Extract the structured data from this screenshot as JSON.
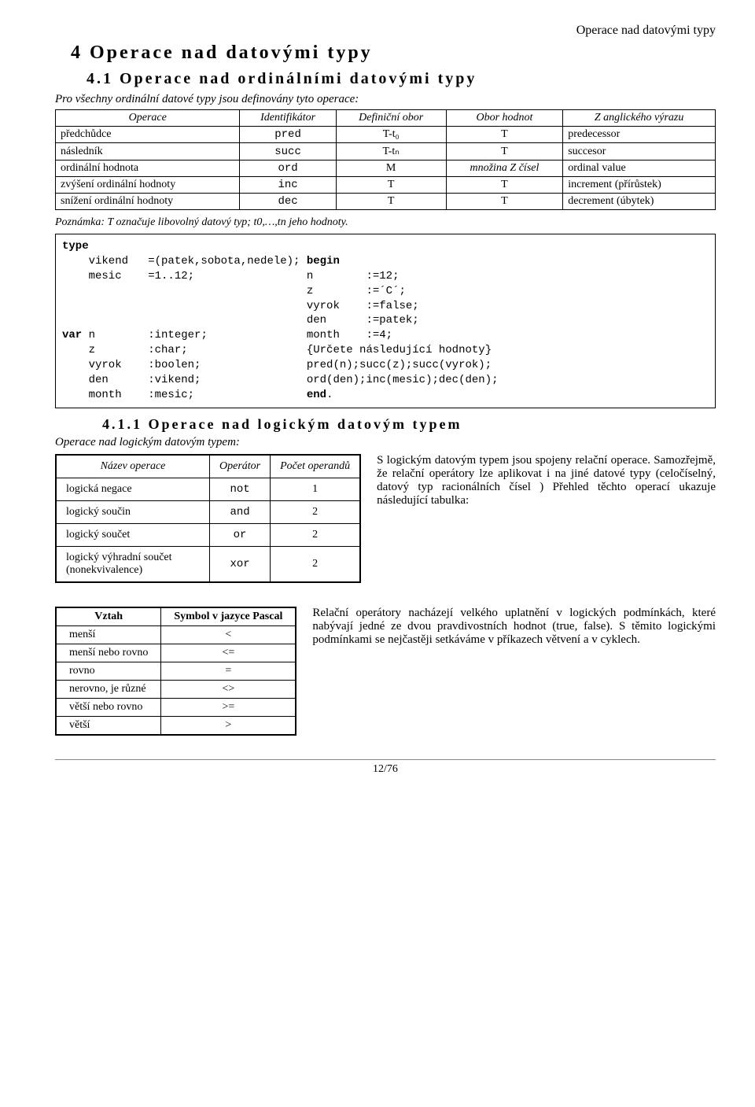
{
  "header_right": "Operace nad datovými typy",
  "h1": "4  Operace nad datovými typy",
  "h2": "4.1   Operace nad ordinálními datovými typy",
  "intro": "Pro všechny ordinální datové typy jsou definovány tyto operace:",
  "ops_table": {
    "headers": [
      "Operace",
      "Identifikátor",
      "Definiční obor",
      "Obor hodnot",
      "Z anglického výrazu"
    ],
    "rows": [
      [
        "předchůdce",
        "pred",
        "T-t₀",
        "T",
        "predecessor"
      ],
      [
        "následník",
        "succ",
        "T-tₙ",
        "T",
        "succesor"
      ],
      [
        "ordinální hodnota",
        "ord",
        "M",
        "množina Z čísel",
        "ordinal value"
      ],
      [
        "zvýšení ordinální hodnoty",
        "inc",
        "T",
        "T",
        "increment (přírůstek)"
      ],
      [
        "snížení ordinální hodnoty",
        "dec",
        "T",
        "T",
        "decrement (úbytek)"
      ]
    ]
  },
  "note": "Poznámka: T označuje libovolný datový typ; t0,…,tn jeho hodnoty.",
  "code": "type\n    vikend   =(patek,sobota,nedele); begin\n    mesic    =1..12;                 n        :=12;\n                                     z        :=´C´;\n                                     vyrok    :=false;\n                                     den      :=patek;\nvar n        :integer;               month    :=4;\n    z        :char;                  {Určete následující hodnoty}\n    vyrok    :boolen;                pred(n);succ(z);succ(vyrok);\n    den      :vikend;                ord(den);inc(mesic);dec(den);\n    month    :mesic;                 end.",
  "h3": "4.1.1     Operace nad logickým datovým typem",
  "subintro": "Operace nad logickým datovým typem:",
  "log_table": {
    "headers": [
      "Název operace",
      "Operátor",
      "Počet operandů"
    ],
    "rows": [
      [
        "logická negace",
        "not",
        "1"
      ],
      [
        "logický součin",
        "and",
        "2"
      ],
      [
        "logický součet",
        "or",
        "2"
      ],
      [
        "logický výhradní součet (nonekvivalence)",
        "xor",
        "2"
      ]
    ]
  },
  "log_para": "S logickým datovým typem jsou spojeny relační operace. Samozřejmě, že relační operátory lze aplikovat i na jiné datové typy (celočíselný, datový typ racionálních čísel ) Přehled těchto operací ukazuje následující tabulka:",
  "rel_table": {
    "headers": [
      "Vztah",
      "Symbol v jazyce Pascal"
    ],
    "rows": [
      [
        "menší",
        "<"
      ],
      [
        "menší nebo rovno",
        "<="
      ],
      [
        "rovno",
        "="
      ],
      [
        "nerovno, je různé",
        "<>"
      ],
      [
        "větší nebo rovno",
        ">="
      ],
      [
        "větší",
        ">"
      ]
    ]
  },
  "rel_para": "Relační operátory nacházejí velkého uplatnění v logických podmínkách, které nabývají jedné ze dvou pravdivostních hodnot (true, false). S těmito logickými podmínkami se nejčastěji setkáváme v příkazech větvení a v cyklech.",
  "footer": "12/76"
}
